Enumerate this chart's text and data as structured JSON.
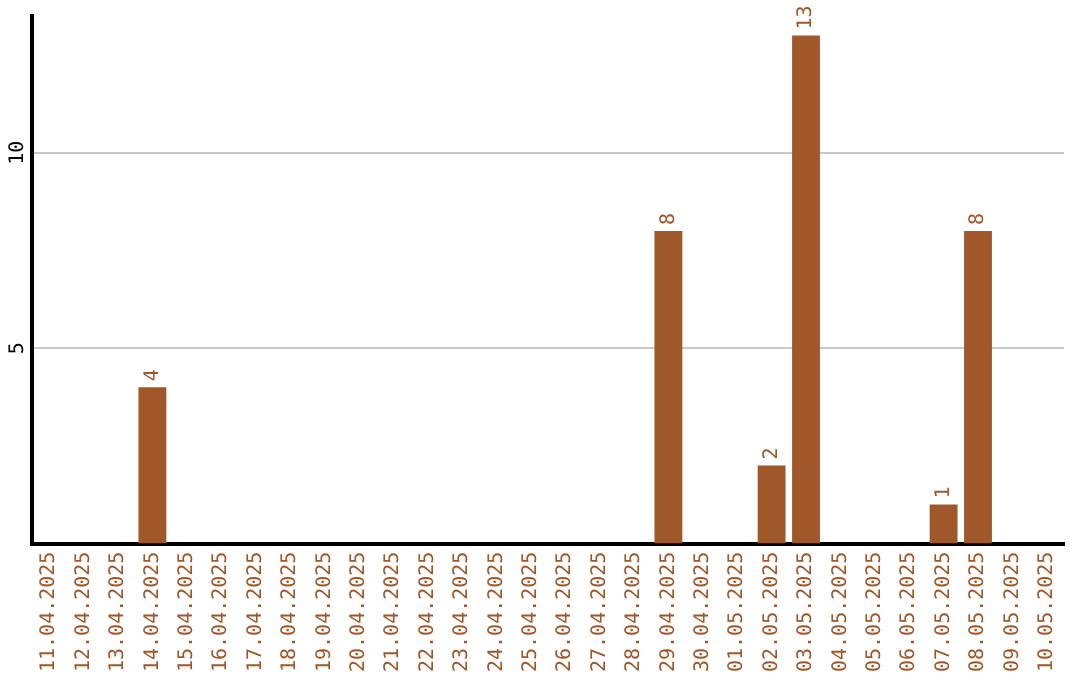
{
  "chart_data": {
    "type": "bar",
    "categories": [
      "11.04.2025",
      "12.04.2025",
      "13.04.2025",
      "14.04.2025",
      "15.04.2025",
      "16.04.2025",
      "17.04.2025",
      "18.04.2025",
      "19.04.2025",
      "20.04.2025",
      "21.04.2025",
      "22.04.2025",
      "23.04.2025",
      "24.04.2025",
      "25.04.2025",
      "26.04.2025",
      "27.04.2025",
      "28.04.2025",
      "29.04.2025",
      "30.04.2025",
      "01.05.2025",
      "02.05.2025",
      "03.05.2025",
      "04.05.2025",
      "05.05.2025",
      "06.05.2025",
      "07.05.2025",
      "08.05.2025",
      "09.05.2025",
      "10.05.2025"
    ],
    "values": [
      null,
      null,
      null,
      4,
      null,
      null,
      null,
      null,
      null,
      null,
      null,
      null,
      null,
      null,
      null,
      null,
      null,
      null,
      8,
      null,
      null,
      2,
      13,
      null,
      null,
      null,
      1,
      8,
      null,
      null
    ],
    "color": "#a0572a",
    "ylim": [
      0,
      13.5
    ],
    "yticks": [
      5,
      10
    ],
    "grid": "y",
    "legend": false,
    "data_labels": true
  }
}
